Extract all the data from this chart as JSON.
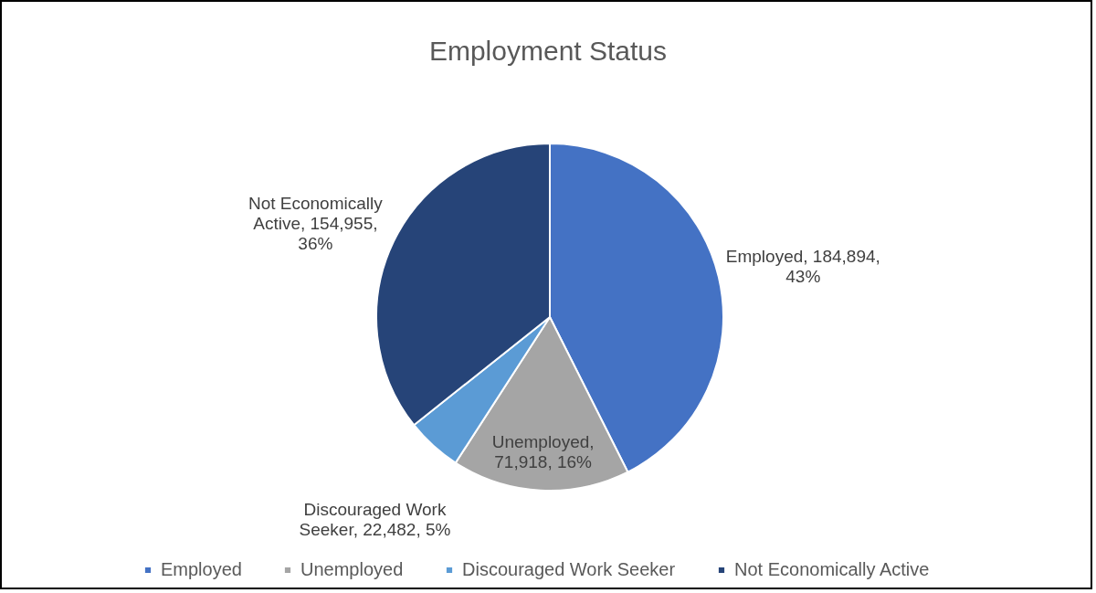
{
  "chart_data": {
    "type": "pie",
    "title": "Employment Status",
    "categories": [
      "Employed",
      "Unemployed",
      "Discouraged Work Seeker",
      "Not Economically Active"
    ],
    "values": [
      184894,
      71918,
      22482,
      154955
    ],
    "colors": [
      "#4472c4",
      "#a5a5a5",
      "#5b9bd5",
      "#264478"
    ],
    "value_labels": [
      "Employed, 184,894, 43%",
      "Unemployed, 71,918, 16%",
      "Discouraged Work Seeker, 22,482, 5%",
      "Not Economically Active,  154,955, 36%"
    ],
    "legend": "bottom"
  }
}
